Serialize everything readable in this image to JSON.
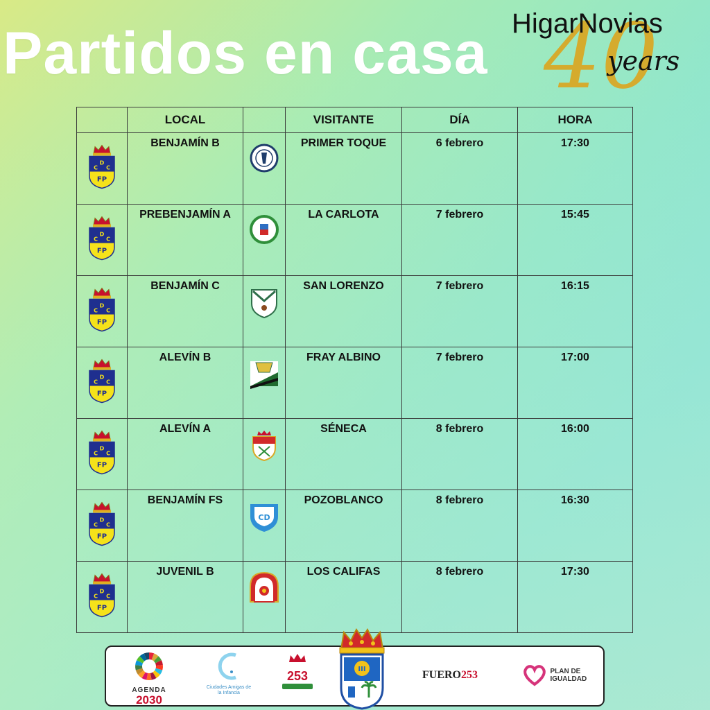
{
  "title": "Partidos en casa",
  "brand": {
    "name": "HigarNovias",
    "forty": "40",
    "years": "years"
  },
  "table": {
    "headers": {
      "local": "LOCAL",
      "visitante": "VISITANTE",
      "dia": "DÍA",
      "hora": "HORA"
    },
    "home_crest": "cdfp-shield-icon",
    "rows": [
      {
        "local": "BENJAMÍN B",
        "visitante": "PRIMER TOQUE",
        "dia": "6 febrero",
        "hora": "17:30",
        "crest": "primer-toque-crest-icon"
      },
      {
        "local": "PREBENJAMÍN A",
        "visitante": "LA CARLOTA",
        "dia": "7 febrero",
        "hora": "15:45",
        "crest": "la-carlota-crest-icon"
      },
      {
        "local": "BENJAMÍN C",
        "visitante": "SAN LORENZO",
        "dia": "7 febrero",
        "hora": "16:15",
        "crest": "san-lorenzo-crest-icon"
      },
      {
        "local": "ALEVÍN B",
        "visitante": "FRAY ALBINO",
        "dia": "7 febrero",
        "hora": "17:00",
        "crest": "fray-albino-crest-icon"
      },
      {
        "local": "ALEVÍN A",
        "visitante": "SÉNECA",
        "dia": "8 febrero",
        "hora": "16:00",
        "crest": "seneca-crest-icon"
      },
      {
        "local": "BENJAMÍN FS",
        "visitante": "POZOBLANCO",
        "dia": "8 febrero",
        "hora": "16:30",
        "crest": "pozoblanco-crest-icon"
      },
      {
        "local": "JUVENIL B",
        "visitante": "LOS CALIFAS",
        "dia": "8 febrero",
        "hora": "17:30",
        "crest": "los-califas-crest-icon"
      }
    ]
  },
  "footer": {
    "agenda_label": "AGENDA",
    "agenda_year": "2030",
    "ciudades_label": "Ciudades Amigas de la Infancia",
    "anniv_number": "253",
    "fuero_text": "FUERO",
    "fuero_number": "253",
    "plan_text": "PLAN DE IGUALDAD"
  },
  "colors": {
    "title": "#ffffff",
    "brand_gold": "#d9a826",
    "shield_blue": "#1f2f8f",
    "shield_yellow": "#f5e21a",
    "crown_red": "#c8102e"
  }
}
